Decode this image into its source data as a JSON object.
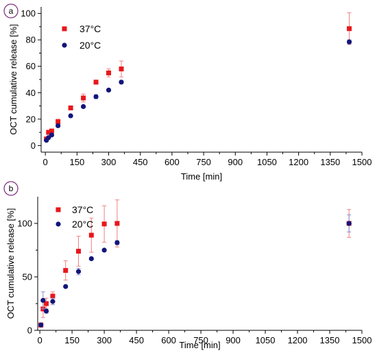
{
  "chart_data": [
    {
      "type": "scatter",
      "panel_label": "a",
      "xlabel": "Time [min]",
      "ylabel": "OCT cumulative release [%]",
      "xlim": [
        -20,
        1500
      ],
      "ylim": [
        -5,
        105
      ],
      "xticks": [
        0,
        150,
        300,
        450,
        600,
        750,
        900,
        1050,
        1200,
        1350,
        1500
      ],
      "yticks": [
        0,
        20,
        40,
        60,
        80,
        100
      ],
      "xtick_labels": [
        "0",
        "150",
        "300",
        "450",
        "600",
        "750",
        "900",
        "1050",
        "1200",
        "1350",
        "1500"
      ],
      "ytick_labels": [
        "0",
        "20",
        "40",
        "60",
        "80",
        "100"
      ],
      "legend_position": "top-left",
      "series": [
        {
          "name": "37°C",
          "color": "#e8171b",
          "marker": "square",
          "x": [
            5,
            15,
            30,
            60,
            120,
            180,
            240,
            300,
            360,
            1440
          ],
          "y": [
            5,
            10,
            11,
            18,
            28.5,
            36,
            48,
            55,
            58,
            88.5
          ],
          "err": [
            1,
            1.5,
            1.5,
            2,
            1.5,
            3,
            1.5,
            3,
            6,
            12
          ]
        },
        {
          "name": "20°C",
          "color": "#12157a",
          "marker": "circle",
          "x": [
            5,
            15,
            30,
            60,
            120,
            180,
            240,
            300,
            360,
            1440
          ],
          "y": [
            4,
            6,
            8,
            15,
            22.5,
            29.5,
            37,
            42,
            48,
            78.5
          ],
          "err": [
            0.5,
            0.5,
            1,
            1,
            1,
            1,
            1.5,
            1,
            1,
            1.5
          ]
        }
      ]
    },
    {
      "type": "scatter",
      "panel_label": "b",
      "xlabel": "Time [min]",
      "ylabel": "OCT cumulative release [%]",
      "xlim": [
        -10,
        1500
      ],
      "ylim": [
        0,
        125
      ],
      "xticks": [
        0,
        150,
        300,
        450,
        600,
        750,
        900,
        1050,
        1200,
        1350,
        1500
      ],
      "yticks": [
        0,
        50,
        100
      ],
      "xtick_labels": [
        "0",
        "150",
        "300",
        "450",
        "600",
        "750",
        "900",
        "1050",
        "1200",
        "1350",
        "1500"
      ],
      "ytick_labels": [
        "0",
        "50",
        "100"
      ],
      "legend_position": "top-left",
      "series": [
        {
          "name": "37°C",
          "color": "#e8171b",
          "marker": "square",
          "x": [
            5,
            15,
            30,
            60,
            120,
            180,
            240,
            300,
            360,
            1440
          ],
          "y": [
            5,
            20,
            25,
            32,
            56,
            74,
            89,
            99.5,
            100,
            100
          ],
          "err": [
            2,
            8,
            5,
            4,
            9,
            14,
            16,
            17,
            22,
            13
          ]
        },
        {
          "name": "20°C",
          "color": "#12157a",
          "marker": "circle",
          "x": [
            5,
            15,
            30,
            60,
            120,
            180,
            240,
            300,
            360,
            1440
          ],
          "y": [
            5,
            28,
            18,
            27,
            41,
            55,
            67,
            75,
            82,
            100
          ],
          "err": [
            1,
            8,
            2,
            3,
            1,
            3,
            1,
            1,
            2,
            8
          ]
        }
      ]
    }
  ]
}
